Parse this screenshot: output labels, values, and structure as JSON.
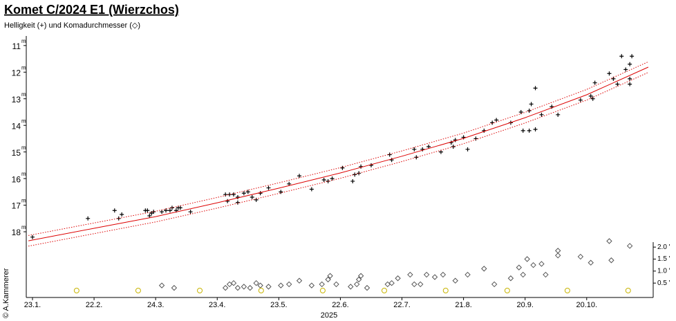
{
  "chart_data": {
    "type": "scatter",
    "title": "Komet C/2024 E1 (Wierzchos)",
    "subtitle": "Helligkeit (+) und Komadurchmesser (◇)",
    "credit": "© A.Kammerer",
    "x_label": "2025",
    "y_unit": "m",
    "xlim": [
      -3.03,
      302.4
    ],
    "xticks": [
      {
        "value": 0,
        "label": "23.1."
      },
      {
        "value": 30,
        "label": "22.2."
      },
      {
        "value": 60,
        "label": "24.3."
      },
      {
        "value": 90,
        "label": "23.4."
      },
      {
        "value": 120,
        "label": "23.5."
      },
      {
        "value": 150,
        "label": "22.6."
      },
      {
        "value": 180,
        "label": "22.7."
      },
      {
        "value": 210,
        "label": "21.8."
      },
      {
        "value": 240,
        "label": "20.9."
      },
      {
        "value": 270,
        "label": "20.10."
      }
    ],
    "ylim": [
      20.47,
      10.64
    ],
    "yticks": [
      11,
      12,
      13,
      14,
      15,
      16,
      17,
      18
    ],
    "y2lim": [
      -0.1,
      10.8
    ],
    "y2ticks": [
      {
        "value": 0.5,
        "label": "0.5 '"
      },
      {
        "value": 1,
        "label": "1.0 '"
      },
      {
        "value": 1.5,
        "label": "1.5 '"
      },
      {
        "value": 2,
        "label": "2.0 '"
      }
    ],
    "series": [
      {
        "marker": "plus",
        "color": "#000000",
        "x": [
          0,
          27,
          40,
          42,
          43.5,
          55,
          56,
          57,
          58,
          59,
          63,
          65,
          67,
          68,
          70,
          71,
          72,
          77,
          94,
          95,
          96,
          98,
          100,
          100,
          103,
          105,
          107,
          109,
          111,
          115,
          121,
          125,
          130,
          136,
          142,
          144,
          146,
          151,
          156,
          157,
          159,
          160,
          165,
          174,
          175,
          186,
          187,
          190,
          193,
          199,
          204,
          205,
          206,
          210,
          212,
          216,
          220,
          224,
          226,
          233,
          238,
          239,
          242,
          242,
          243,
          245,
          245,
          248,
          253,
          256,
          267,
          272,
          273,
          274,
          281,
          283,
          285,
          287,
          289,
          291,
          291,
          291,
          292
        ],
        "values": [
          18.2,
          17.5,
          17.2,
          17.5,
          17.35,
          17.2,
          17.2,
          17.4,
          17.3,
          17.25,
          17.25,
          17.2,
          17.2,
          17.1,
          17.2,
          17.1,
          17.1,
          17.25,
          16.6,
          16.85,
          16.6,
          16.6,
          16.7,
          16.9,
          16.55,
          16.5,
          16.7,
          16.8,
          16.55,
          16.35,
          16.5,
          16.2,
          15.9,
          16.4,
          16.05,
          16.1,
          16.0,
          15.6,
          16.1,
          15.85,
          15.8,
          15.55,
          15.5,
          15.1,
          15.3,
          14.9,
          15.2,
          14.9,
          14.8,
          15.0,
          14.65,
          14.8,
          14.55,
          14.45,
          14.9,
          14.5,
          14.2,
          13.9,
          13.8,
          13.9,
          13.5,
          14.2,
          13.45,
          14.2,
          13.2,
          14.15,
          12.6,
          13.6,
          13.3,
          13.6,
          13.05,
          12.9,
          13.0,
          12.4,
          12.05,
          12.25,
          12.45,
          11.4,
          11.9,
          11.7,
          12.25,
          12.45,
          11.4
        ]
      },
      {
        "marker": "diamond",
        "color": "#555555",
        "axis": "y2",
        "x": [
          63,
          69,
          94,
          96,
          98,
          100,
          103,
          106,
          109,
          111,
          115,
          121,
          125,
          130,
          136,
          141,
          144,
          145,
          148,
          155,
          158,
          159,
          160,
          163,
          173,
          175,
          178,
          184,
          186,
          189,
          192,
          196,
          200,
          206,
          212,
          220,
          225,
          233,
          237,
          239,
          241,
          244,
          248,
          250,
          256,
          256,
          267,
          272,
          281,
          282,
          291
        ],
        "values": [
          0.4,
          0.3,
          0.3,
          0.45,
          0.5,
          0.3,
          0.35,
          0.3,
          0.5,
          0.4,
          0.35,
          0.4,
          0.45,
          0.6,
          0.4,
          0.45,
          0.65,
          0.8,
          0.45,
          0.35,
          0.45,
          0.65,
          0.8,
          0.3,
          0.45,
          0.5,
          0.7,
          0.85,
          0.45,
          0.45,
          0.85,
          0.75,
          0.85,
          0.6,
          0.85,
          1.1,
          0.45,
          0.7,
          1.15,
          0.85,
          1.5,
          1.25,
          1.3,
          0.85,
          1.85,
          1.65,
          1.6,
          1.35,
          2.25,
          1.45,
          2.05
        ]
      },
      {
        "marker": "line",
        "color": "#dd0000",
        "x": [
          -2,
          30,
          60,
          90,
          120,
          150,
          180,
          210,
          240,
          270,
          300
        ],
        "values": [
          18.34,
          17.87,
          17.43,
          16.91,
          16.36,
          15.79,
          15.16,
          14.49,
          13.71,
          12.85,
          11.81
        ]
      },
      {
        "marker": "dotted",
        "color": "#dd0000",
        "x": [
          -2,
          30,
          60,
          90,
          120,
          150,
          180,
          210,
          240,
          270,
          300
        ],
        "values": [
          18.14,
          17.67,
          17.23,
          16.71,
          16.16,
          15.59,
          14.96,
          14.29,
          13.51,
          12.65,
          11.61
        ]
      },
      {
        "marker": "dotted",
        "color": "#dd0000",
        "x": [
          -2,
          30,
          60,
          90,
          120,
          150,
          180,
          210,
          240,
          270,
          300
        ],
        "values": [
          18.54,
          18.07,
          17.63,
          17.11,
          16.56,
          15.99,
          15.36,
          14.69,
          13.91,
          13.05,
          12.01
        ]
      }
    ],
    "markers": {
      "color": "#c8b400",
      "x": [
        21.5,
        51.5,
        81.5,
        111.4,
        141.4,
        171.4,
        201.3,
        231.3,
        260.6,
        290.2
      ]
    }
  }
}
